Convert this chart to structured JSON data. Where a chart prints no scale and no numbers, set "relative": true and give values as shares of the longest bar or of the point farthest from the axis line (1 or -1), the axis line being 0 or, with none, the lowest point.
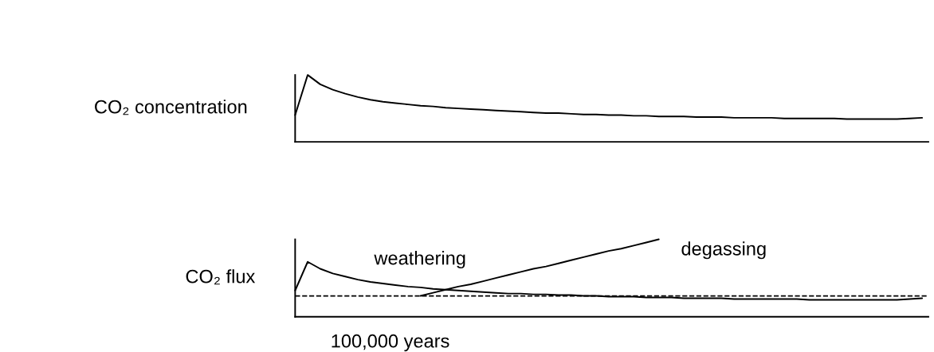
{
  "chart_data": [
    {
      "type": "line",
      "relative": true,
      "ylabel": "CO₂ concentration",
      "line_style": "solid",
      "categories": [
        null,
        null,
        null,
        null,
        null,
        null,
        null,
        null,
        null,
        null,
        null,
        null,
        null,
        null,
        null,
        null,
        null,
        null,
        null,
        null,
        null,
        null,
        null,
        null,
        null,
        null,
        null,
        null,
        null,
        null,
        null,
        null,
        null,
        null,
        null,
        null,
        null,
        null,
        null,
        null,
        null,
        null,
        null,
        null,
        null,
        null,
        null,
        null,
        null,
        null,
        null
      ],
      "series": [
        {
          "color": "#000000",
          "values": [
            0.4,
            1.0,
            0.86,
            0.78,
            0.72,
            0.67,
            0.63,
            0.6,
            0.58,
            0.56,
            0.54,
            0.53,
            0.51,
            0.5,
            0.49,
            0.48,
            0.47,
            0.46,
            0.45,
            0.44,
            0.43,
            0.43,
            0.42,
            0.41,
            0.41,
            0.4,
            0.4,
            0.39,
            0.39,
            0.38,
            0.38,
            0.38,
            0.37,
            0.37,
            0.37,
            0.36,
            0.36,
            0.36,
            0.36,
            0.35,
            0.35,
            0.35,
            0.35,
            0.35,
            0.34,
            0.34,
            0.34,
            0.34,
            0.34,
            0.35,
            0.36
          ]
        }
      ]
    },
    {
      "type": "line",
      "relative": true,
      "ylabel": "CO₂ flux",
      "xlabel": "100,000 years",
      "line_style": "solid",
      "categories": [
        null,
        null,
        null,
        null,
        null,
        null,
        null,
        null,
        null,
        null,
        null,
        null,
        null,
        null,
        null,
        null,
        null,
        null,
        null,
        null,
        null,
        null,
        null,
        null,
        null,
        null,
        null,
        null,
        null,
        null,
        null,
        null,
        null,
        null,
        null,
        null,
        null,
        null,
        null,
        null,
        null,
        null,
        null,
        null,
        null,
        null,
        null,
        null,
        null,
        null,
        null
      ],
      "series": [
        {
          "name": "weathering",
          "color": "#000000",
          "values": [
            0.34,
            0.71,
            0.62,
            0.56,
            0.52,
            0.48,
            0.45,
            0.43,
            0.41,
            0.39,
            0.38,
            0.36,
            0.35,
            0.34,
            0.33,
            0.32,
            0.31,
            0.3,
            0.3,
            0.29,
            0.29,
            0.28,
            0.28,
            0.27,
            0.27,
            0.26,
            0.26,
            0.26,
            0.25,
            0.25,
            0.25,
            0.24,
            0.24,
            0.24,
            0.24,
            0.23,
            0.23,
            0.23,
            0.23,
            0.23,
            0.23,
            0.22,
            0.22,
            0.22,
            0.22,
            0.22,
            0.22,
            0.22,
            0.22,
            0.23,
            0.24
          ]
        },
        {
          "name": "degassing",
          "color": "#000000",
          "values": [
            null,
            null,
            null,
            null,
            null,
            null,
            null,
            null,
            null,
            null,
            0.27,
            0.31,
            0.35,
            0.39,
            0.42,
            0.46,
            0.5,
            0.54,
            0.58,
            0.62,
            0.65,
            0.69,
            0.73,
            0.77,
            0.81,
            0.85,
            0.88,
            0.92,
            0.96,
            1.0,
            null,
            null,
            null,
            null,
            null,
            null,
            null,
            null,
            null,
            null,
            null,
            null,
            null,
            null,
            null,
            null,
            null,
            null,
            null,
            null,
            null
          ]
        }
      ],
      "ref_lines": [
        {
          "axis": "y",
          "value": 0.27,
          "color": "#000000",
          "line_style": "dashed"
        }
      ]
    }
  ]
}
